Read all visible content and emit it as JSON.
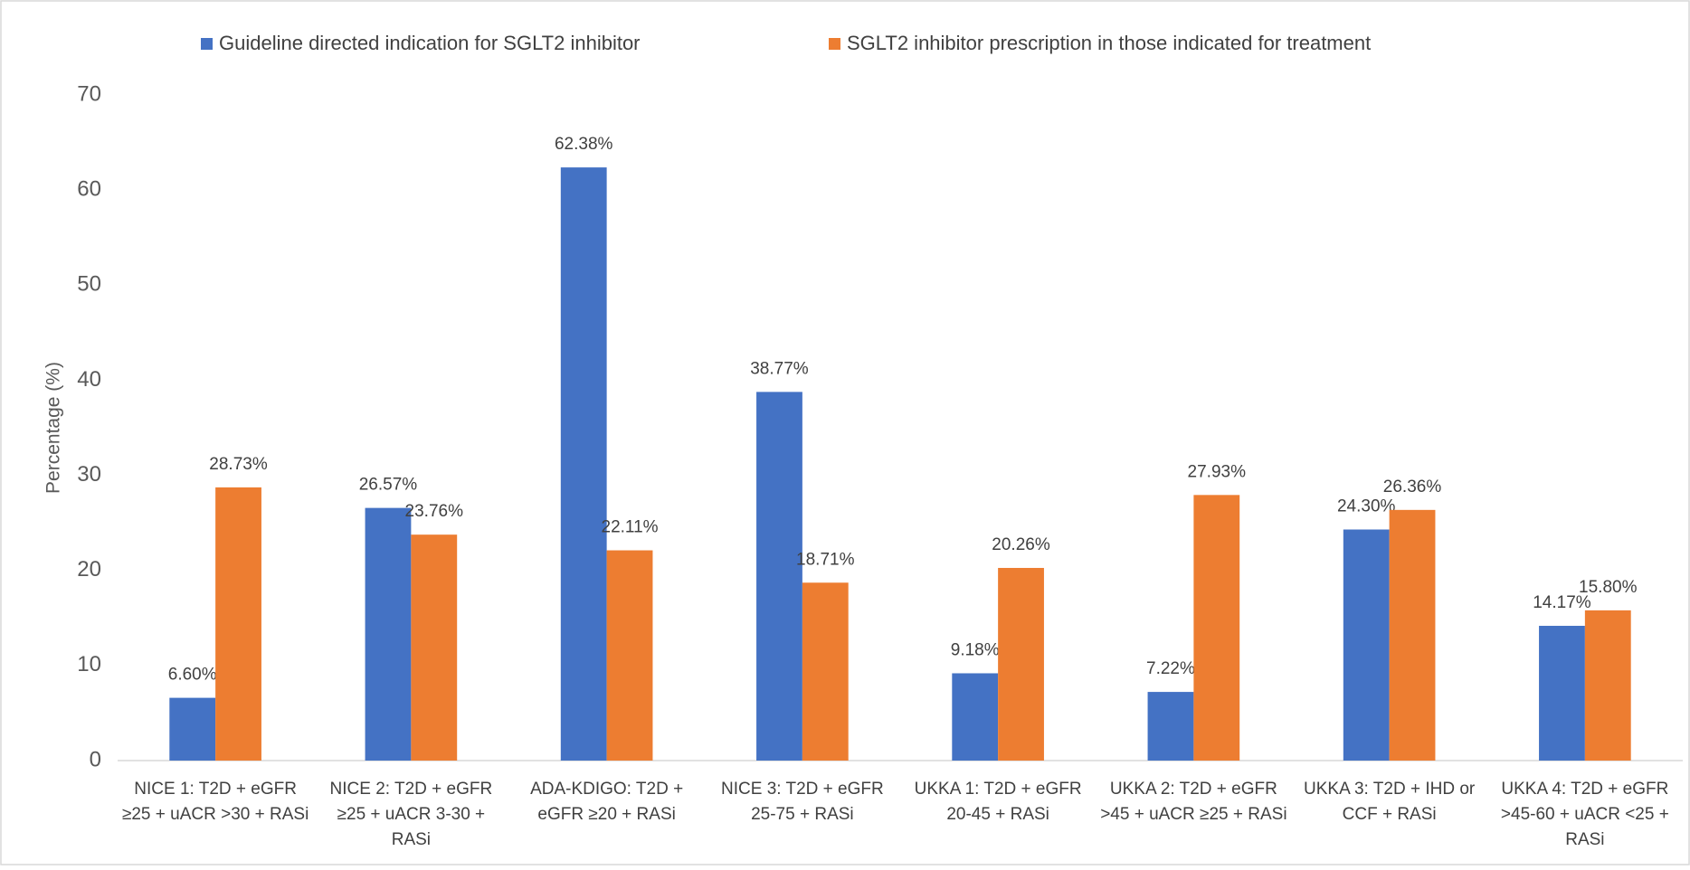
{
  "chart_data": {
    "type": "bar",
    "y_label": "Percentage (%)",
    "categories": [
      "NICE 1: T2D + eGFR ≥25 + uACR >30 + RASi",
      "NICE 2: T2D + eGFR ≥25 + uACR 3-30 + RASi",
      "ADA-KDIGO: T2D + eGFR ≥20 + RASi",
      "NICE 3: T2D + eGFR 25-75 + RASi",
      "UKKA 1: T2D + eGFR 20-45 + RASi",
      "UKKA 2: T2D + eGFR >45 + uACR ≥25 + RASi",
      "UKKA 3: T2D + IHD or CCF + RASi",
      "UKKA 4: T2D + eGFR >45-60 + uACR <25 + RASi"
    ],
    "series": [
      {
        "name": "Guideline directed indication for SGLT2 inhibitor",
        "color": "#4472c4",
        "values": [
          6.6,
          26.57,
          62.38,
          38.77,
          9.18,
          7.22,
          24.3,
          14.17
        ],
        "value_labels": [
          "6.60%",
          "26.57%",
          "62.38%",
          "38.77%",
          "9.18%",
          "7.22%",
          "24.30%",
          "14.17%"
        ]
      },
      {
        "name": "SGLT2 inhibitor prescription in those indicated for treatment",
        "color": "#ed7d31",
        "values": [
          28.73,
          23.76,
          22.11,
          18.71,
          20.26,
          27.93,
          26.36,
          15.8
        ],
        "value_labels": [
          "28.73%",
          "23.76%",
          "22.11%",
          "18.71%",
          "20.26%",
          "27.93%",
          "26.36%",
          "15.80%"
        ]
      }
    ],
    "ylim": [
      0,
      70
    ],
    "yticks": [
      0,
      10,
      20,
      30,
      40,
      50,
      60,
      70
    ],
    "grid": false,
    "legend": "top"
  }
}
